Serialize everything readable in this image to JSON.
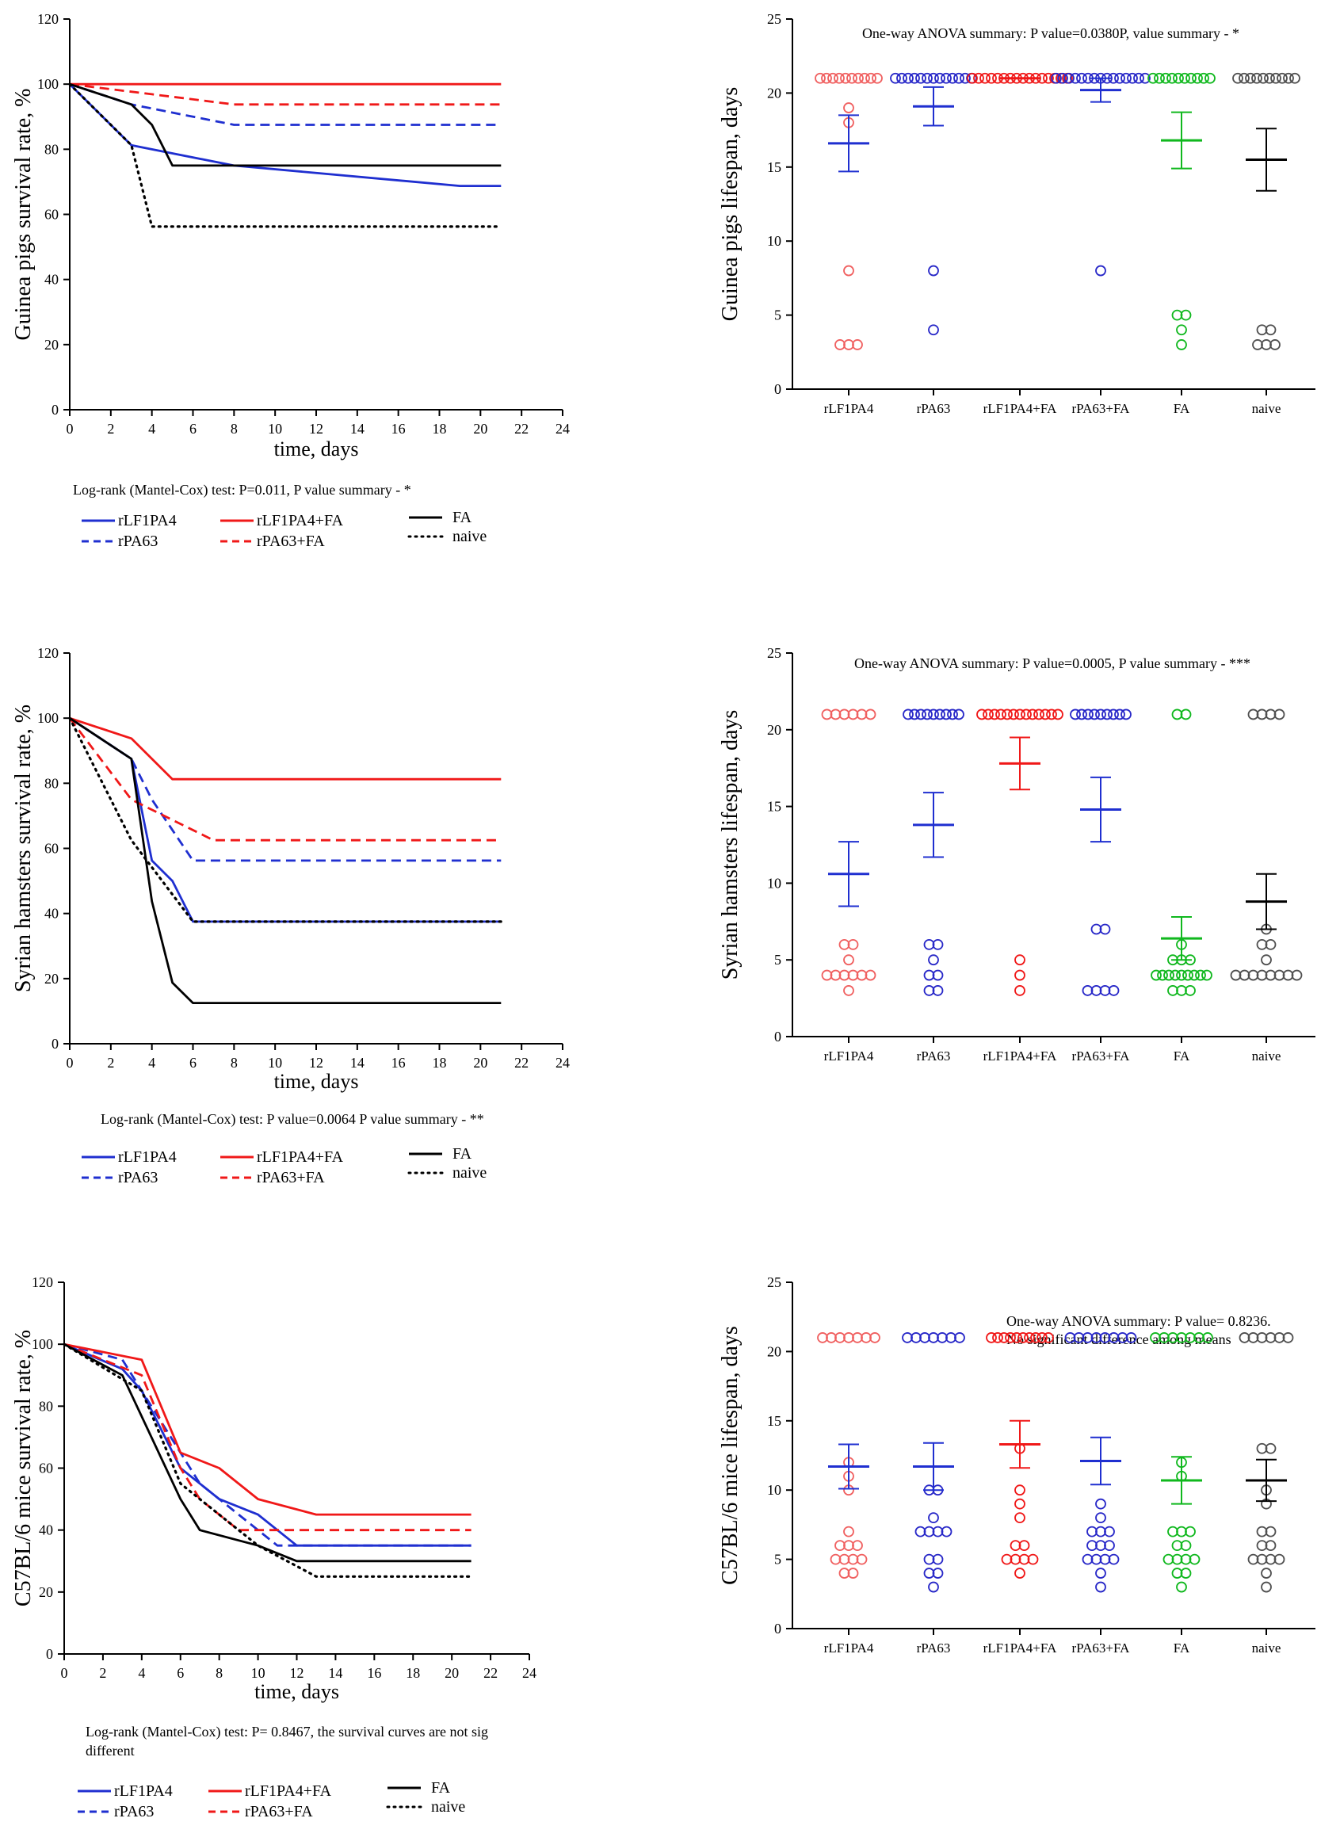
{
  "colors": {
    "rLF1PA4": "#1f2fd0",
    "rPA63": "#1f2fd0",
    "rLF1PA4+FA": "#f01818",
    "rPA63+FA": "#f01818",
    "FA": "#000000",
    "naive": "#000000",
    "dot_rLF1PA4": "#f06060",
    "dot_rPA63": "#2828c8",
    "dot_rLF1PA4+FA": "#f01818",
    "dot_rPA63+FA": "#2828c8",
    "dot_FA": "#10b81e",
    "dot_naive": "#505050"
  },
  "chart_data": [
    {
      "id": "gp_survival",
      "type": "line",
      "ylabel": "Guinea pigs survival rate, %",
      "xlabel": "time, days",
      "xlim": [
        0,
        24
      ],
      "ylim": [
        0,
        120
      ],
      "xticks": [
        "0",
        "2",
        "4",
        "6",
        "8",
        "10",
        "12",
        "14",
        "16",
        "18",
        "20",
        "22",
        "24"
      ],
      "yticks": [
        "0",
        "20",
        "40",
        "60",
        "80",
        "100",
        "120"
      ],
      "stat": "Log-rank (Mantel-Cox) test: P=0.011, P value summary - *",
      "legend": [
        "rLF1PA4",
        "rPA63",
        "rLF1PA4+FA",
        "rPA63+FA",
        "FA",
        "naive"
      ],
      "series": [
        {
          "name": "rLF1PA4",
          "style": "solid",
          "points": [
            [
              0,
              100
            ],
            [
              3,
              81.25
            ],
            [
              8,
              75
            ],
            [
              19,
              68.75
            ],
            [
              21,
              68.75
            ]
          ]
        },
        {
          "name": "rPA63",
          "style": "dashed",
          "points": [
            [
              0,
              100
            ],
            [
              3,
              93.75
            ],
            [
              8,
              87.5
            ],
            [
              21,
              87.5
            ]
          ]
        },
        {
          "name": "rLF1PA4+FA",
          "style": "solid",
          "points": [
            [
              0,
              100
            ],
            [
              21,
              100
            ]
          ]
        },
        {
          "name": "rPA63+FA",
          "style": "dashed",
          "points": [
            [
              0,
              100
            ],
            [
              4,
              96.9
            ],
            [
              8,
              93.75
            ],
            [
              21,
              93.75
            ]
          ]
        },
        {
          "name": "FA",
          "style": "solid",
          "points": [
            [
              0,
              100
            ],
            [
              3,
              93.75
            ],
            [
              4,
              87.5
            ],
            [
              5,
              75
            ],
            [
              21,
              75
            ]
          ]
        },
        {
          "name": "naive",
          "style": "dotted",
          "points": [
            [
              0,
              100
            ],
            [
              3,
              81.25
            ],
            [
              4,
              56.25
            ],
            [
              21,
              56.25
            ]
          ]
        }
      ]
    },
    {
      "id": "gp_lifespan",
      "type": "scatter",
      "ylabel": "Guinea pigs lifespan, days",
      "categories": [
        "rLF1PA4",
        "rPA63",
        "rLF1PA4+FA",
        "rPA63+FA",
        "FA",
        "naive"
      ],
      "ylim": [
        0,
        25
      ],
      "yticks": [
        "0",
        "5",
        "10",
        "15",
        "20",
        "25"
      ],
      "annotation": "One-way ANOVA summary: P value=0.0380P, value summary - *",
      "mean": [
        16.6,
        19.1,
        21,
        20.2,
        16.8,
        15.5
      ],
      "sem": [
        1.9,
        1.3,
        0,
        0.8,
        1.9,
        2.1
      ],
      "points": [
        [
          21,
          21,
          21,
          21,
          21,
          21,
          21,
          21,
          21,
          21,
          19,
          18,
          8,
          3,
          3,
          3
        ],
        [
          21,
          21,
          21,
          21,
          21,
          21,
          21,
          21,
          21,
          21,
          21,
          21,
          21,
          8,
          4
        ],
        [
          21,
          21,
          21,
          21,
          21,
          21,
          21,
          21,
          21,
          21,
          21,
          21,
          21,
          21,
          21,
          21
        ],
        [
          21,
          21,
          21,
          21,
          21,
          21,
          21,
          21,
          21,
          21,
          21,
          21,
          21,
          21,
          21,
          8
        ],
        [
          21,
          21,
          21,
          21,
          21,
          21,
          21,
          21,
          21,
          21,
          5,
          5,
          4,
          3
        ],
        [
          21,
          21,
          21,
          21,
          21,
          21,
          21,
          21,
          21,
          21,
          4,
          4,
          3,
          3,
          3
        ]
      ]
    },
    {
      "id": "sh_survival",
      "type": "line",
      "ylabel": "Syrian hamsters survival rate, %",
      "xlabel": "time, days",
      "xlim": [
        0,
        24
      ],
      "ylim": [
        0,
        120
      ],
      "xticks": [
        "0",
        "2",
        "4",
        "6",
        "8",
        "10",
        "12",
        "14",
        "16",
        "18",
        "20",
        "22",
        "24"
      ],
      "yticks": [
        "0",
        "20",
        "40",
        "60",
        "80",
        "100",
        "120"
      ],
      "stat": "Log-rank (Mantel-Cox) test:  P value=0.0064  P value summary - **",
      "legend": [
        "rLF1PA4",
        "rPA63",
        "rLF1PA4+FA",
        "rPA63+FA",
        "FA",
        "naive"
      ],
      "series": [
        {
          "name": "rLF1PA4",
          "style": "solid",
          "points": [
            [
              0,
              100
            ],
            [
              3,
              87.5
            ],
            [
              4,
              56.25
            ],
            [
              5,
              50
            ],
            [
              6,
              37.5
            ],
            [
              21,
              37.5
            ]
          ]
        },
        {
          "name": "rPA63",
          "style": "dashed",
          "points": [
            [
              0,
              100
            ],
            [
              3,
              87.5
            ],
            [
              4,
              75
            ],
            [
              6,
              56.25
            ],
            [
              21,
              56.25
            ]
          ]
        },
        {
          "name": "rLF1PA4+FA",
          "style": "solid",
          "points": [
            [
              0,
              100
            ],
            [
              3,
              93.75
            ],
            [
              5,
              81.25
            ],
            [
              21,
              81.25
            ]
          ]
        },
        {
          "name": "rPA63+FA",
          "style": "dashed",
          "points": [
            [
              0,
              100
            ],
            [
              3,
              75
            ],
            [
              5,
              68.75
            ],
            [
              7,
              62.5
            ],
            [
              21,
              62.5
            ]
          ]
        },
        {
          "name": "FA",
          "style": "solid",
          "points": [
            [
              0,
              100
            ],
            [
              3,
              87.5
            ],
            [
              4,
              43.75
            ],
            [
              5,
              18.75
            ],
            [
              6,
              12.5
            ],
            [
              21,
              12.5
            ]
          ]
        },
        {
          "name": "naive",
          "style": "dotted",
          "points": [
            [
              0,
              100
            ],
            [
              3,
              62.5
            ],
            [
              6,
              37.5
            ],
            [
              21,
              37.5
            ]
          ]
        }
      ]
    },
    {
      "id": "sh_lifespan",
      "type": "scatter",
      "ylabel": "Syrian hamsters lifespan, days",
      "categories": [
        "rLF1PA4",
        "rPA63",
        "rLF1PA4+FA",
        "rPA63+FA",
        "FA",
        "naive"
      ],
      "ylim": [
        0,
        25
      ],
      "yticks": [
        "0",
        "5",
        "10",
        "15",
        "20",
        "25"
      ],
      "annotation": "One-way ANOVA summary: P value=0.0005,  P value summary - ***",
      "mean": [
        10.6,
        13.8,
        17.8,
        14.8,
        6.4,
        8.8
      ],
      "sem": [
        2.1,
        2.1,
        1.7,
        2.1,
        1.4,
        1.8
      ],
      "points": [
        [
          21,
          21,
          21,
          21,
          21,
          21,
          6,
          6,
          5,
          4,
          4,
          4,
          4,
          4,
          4,
          3
        ],
        [
          21,
          21,
          21,
          21,
          21,
          21,
          21,
          21,
          21,
          6,
          6,
          5,
          4,
          4,
          3,
          3
        ],
        [
          21,
          21,
          21,
          21,
          21,
          21,
          21,
          21,
          21,
          21,
          21,
          21,
          21,
          5,
          4,
          3
        ],
        [
          21,
          21,
          21,
          21,
          21,
          21,
          21,
          21,
          21,
          7,
          7,
          3,
          3,
          3,
          3
        ],
        [
          21,
          21,
          6,
          5,
          5,
          5,
          4,
          4,
          4,
          4,
          4,
          4,
          4,
          4,
          4,
          3,
          3,
          3
        ],
        [
          21,
          21,
          21,
          21,
          7,
          6,
          6,
          5,
          4,
          4,
          4,
          4,
          4,
          4,
          4,
          4
        ]
      ]
    },
    {
      "id": "mice_survival",
      "type": "line",
      "ylabel": "C57BL/6 mice survival rate, %",
      "xlabel": "time, days",
      "xlim": [
        0,
        24
      ],
      "ylim": [
        0,
        120
      ],
      "xticks": [
        "0",
        "2",
        "4",
        "6",
        "8",
        "10",
        "12",
        "14",
        "16",
        "18",
        "20",
        "22",
        "24"
      ],
      "yticks": [
        "0",
        "20",
        "40",
        "60",
        "80",
        "100",
        "120"
      ],
      "stat": "Log-rank (Mantel-Cox) test: P= 0.8467, the survival curves are not sig different",
      "stat_lines": [
        "Log-rank (Mantel-Cox) test: P= 0.8467, the survival curves are not sig",
        "different"
      ],
      "legend": [
        "rLF1PA4",
        "rPA63",
        "rLF1PA4+FA",
        "rPA63+FA",
        "FA",
        "naive"
      ],
      "series": [
        {
          "name": "rLF1PA4",
          "style": "solid",
          "points": [
            [
              0,
              100
            ],
            [
              3,
              92
            ],
            [
              4,
              85
            ],
            [
              6,
              60
            ],
            [
              8,
              50
            ],
            [
              10,
              45
            ],
            [
              12,
              35
            ],
            [
              21,
              35
            ]
          ]
        },
        {
          "name": "rPA63",
          "style": "dashed",
          "points": [
            [
              0,
              100
            ],
            [
              3,
              95
            ],
            [
              4,
              85
            ],
            [
              6,
              65
            ],
            [
              7,
              55
            ],
            [
              9,
              45
            ],
            [
              11,
              35
            ],
            [
              21,
              35
            ]
          ]
        },
        {
          "name": "rLF1PA4+FA",
          "style": "solid",
          "points": [
            [
              0,
              100
            ],
            [
              4,
              95
            ],
            [
              6,
              65
            ],
            [
              8,
              60
            ],
            [
              10,
              50
            ],
            [
              13,
              45
            ],
            [
              21,
              45
            ]
          ]
        },
        {
          "name": "rPA63+FA",
          "style": "dashed",
          "points": [
            [
              0,
              100
            ],
            [
              4,
              90
            ],
            [
              6,
              60
            ],
            [
              7,
              50
            ],
            [
              9,
              40
            ],
            [
              21,
              40
            ]
          ]
        },
        {
          "name": "FA",
          "style": "solid",
          "points": [
            [
              0,
              100
            ],
            [
              3,
              90
            ],
            [
              6,
              50
            ],
            [
              7,
              40
            ],
            [
              10,
              35
            ],
            [
              12,
              30
            ],
            [
              21,
              30
            ]
          ]
        },
        {
          "name": "naive",
          "style": "dotted",
          "points": [
            [
              0,
              100
            ],
            [
              4,
              85
            ],
            [
              6,
              55
            ],
            [
              7,
              50
            ],
            [
              10,
              35
            ],
            [
              13,
              25
            ],
            [
              21,
              25
            ]
          ]
        }
      ]
    },
    {
      "id": "mice_lifespan",
      "type": "scatter",
      "ylabel": "C57BL/6 mice lifespan, days",
      "categories": [
        "rLF1PA4",
        "rPA63",
        "rLF1PA4+FA",
        "rPA63+FA",
        "FA",
        "naive"
      ],
      "ylim": [
        0,
        25
      ],
      "yticks": [
        "0",
        "5",
        "10",
        "15",
        "20",
        "25"
      ],
      "annotation": "One-way ANOVA summary: P value= 0.8236. No significant difference  among means",
      "annotation_lines": [
        "One-way ANOVA summary: P value= 0.8236.",
        "No significant difference  among means"
      ],
      "mean": [
        11.7,
        11.7,
        13.3,
        12.1,
        10.7,
        10.7
      ],
      "sem": [
        1.6,
        1.7,
        1.7,
        1.7,
        1.7,
        1.5
      ],
      "points": [
        [
          21,
          21,
          21,
          21,
          21,
          21,
          21,
          12,
          11,
          10,
          7,
          6,
          6,
          6,
          5,
          5,
          5,
          5,
          4,
          4
        ],
        [
          21,
          21,
          21,
          21,
          21,
          21,
          21,
          10,
          10,
          8,
          7,
          7,
          7,
          7,
          5,
          5,
          4,
          4,
          3
        ],
        [
          21,
          21,
          21,
          21,
          21,
          21,
          21,
          21,
          21,
          21,
          13,
          10,
          9,
          8,
          6,
          6,
          5,
          5,
          5,
          5,
          4
        ],
        [
          21,
          21,
          21,
          21,
          21,
          21,
          21,
          21,
          9,
          8,
          7,
          7,
          7,
          6,
          6,
          6,
          5,
          5,
          5,
          5,
          4,
          3
        ],
        [
          21,
          21,
          21,
          21,
          21,
          21,
          21,
          12,
          11,
          7,
          7,
          7,
          6,
          6,
          5,
          5,
          5,
          5,
          4,
          4,
          3
        ],
        [
          21,
          21,
          21,
          21,
          21,
          21,
          13,
          13,
          10,
          9,
          7,
          7,
          6,
          6,
          5,
          5,
          5,
          5,
          4,
          3
        ]
      ]
    }
  ]
}
